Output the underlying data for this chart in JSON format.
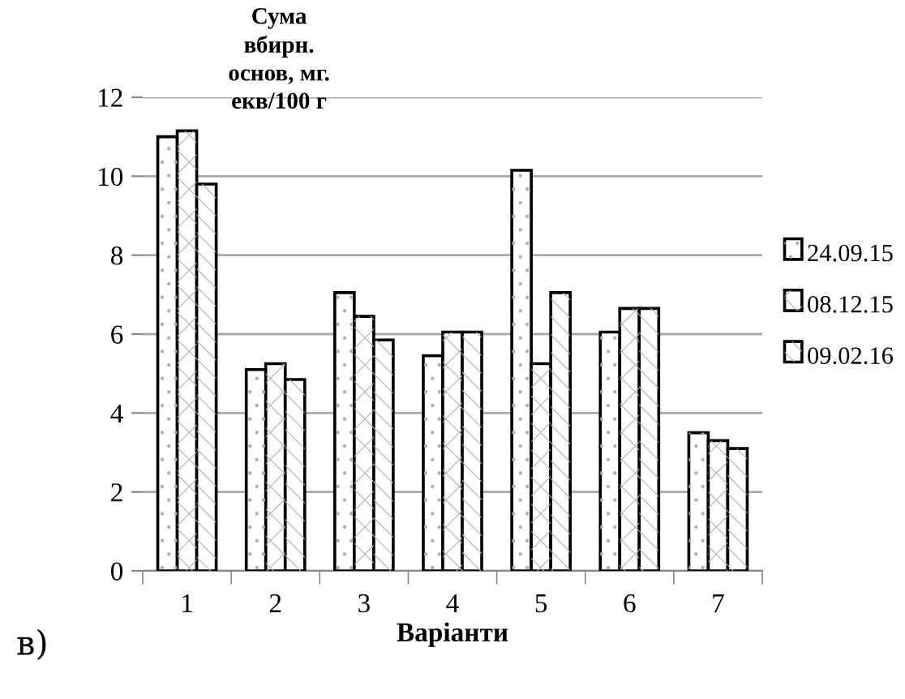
{
  "chart_data": {
    "type": "bar",
    "ylabel": "Сума\nвбирн.\nоснов, мг.\nекв/100 г",
    "xlabel": "Варіанти",
    "annotations": [
      "в)"
    ],
    "categories": [
      "1",
      "2",
      "3",
      "4",
      "5",
      "6",
      "7"
    ],
    "series": [
      {
        "name": "24.09.15",
        "color": "#ffffff",
        "values": [
          11.0,
          5.1,
          7.05,
          5.45,
          10.15,
          6.05,
          3.5
        ]
      },
      {
        "name": "08.12.15",
        "color": "#ffffff",
        "values": [
          11.15,
          5.25,
          6.45,
          6.05,
          5.25,
          6.65,
          3.3
        ]
      },
      {
        "name": "09.02.16",
        "color": "#ffffff",
        "values": [
          9.8,
          4.85,
          5.85,
          6.05,
          7.05,
          6.65,
          3.1
        ]
      }
    ],
    "ylim": [
      0,
      12
    ],
    "yticks": [
      0,
      2,
      4,
      6,
      8,
      10,
      12
    ],
    "grid": "y",
    "legend": "right"
  }
}
